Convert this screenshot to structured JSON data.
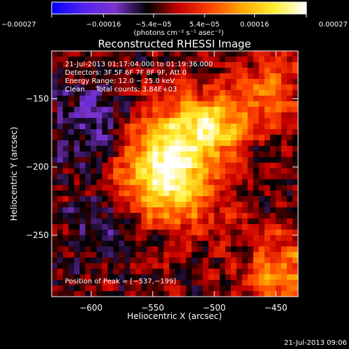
{
  "chart_data": {
    "type": "heatmap",
    "title": "Reconstructed RHESSI Image",
    "xlabel": "Heliocentric X (arcsec)",
    "ylabel": "Heliocentric Y (arcsec)",
    "xlim": [
      -632,
      -432
    ],
    "ylim": [
      -295,
      -115
    ],
    "x_ticks": [
      {
        "value": -600,
        "label": "−600"
      },
      {
        "value": -550,
        "label": "−550"
      },
      {
        "value": -500,
        "label": "−500"
      },
      {
        "value": -450,
        "label": "−450"
      }
    ],
    "y_ticks": [
      {
        "value": -150,
        "label": "−150"
      },
      {
        "value": -200,
        "label": "−200"
      },
      {
        "value": -250,
        "label": "−250"
      }
    ],
    "colorbar": {
      "range": [
        -0.00027,
        0.00027
      ],
      "ticks": [
        {
          "value": -0.00027,
          "label": "−0.00027"
        },
        {
          "value": -0.00016,
          "label": "−0.00016"
        },
        {
          "value": -5.4e-05,
          "label": "−5.4e−05"
        },
        {
          "value": 5.4e-05,
          "label": "5.4e−05"
        },
        {
          "value": 0.00016,
          "label": "0.00016"
        },
        {
          "value": 0.00027,
          "label": "0.00027"
        }
      ],
      "unit_label": "(photons cm⁻² s⁻¹ asec⁻²)",
      "colormap": [
        "#0000ff",
        "#5522ee",
        "#7a33cc",
        "#000000",
        "#c80000",
        "#ff4400",
        "#ffaa00",
        "#ffee33",
        "#ffffff"
      ]
    },
    "annotations": {
      "time_range": "21-Jul-2013 01:17:04.000 to 01:19:36.000",
      "detectors": "Detectors: 3F 5F 6F 7F 8F 9F, Att 0",
      "energy_range": "Energy Range: 12.0 − 25.0 keV",
      "clean_counts": "Clean     Total counts: 3.84E+03",
      "peak_position": "Position of Peak = [−537,−199]"
    },
    "peak": {
      "x": -537,
      "y": -199
    },
    "footer_date": "21-Jul-2013 09:06"
  }
}
